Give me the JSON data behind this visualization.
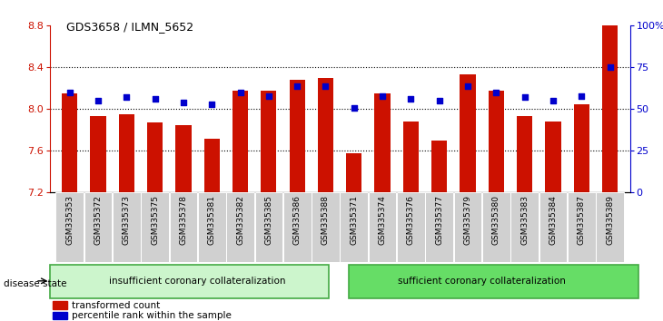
{
  "title": "GDS3658 / ILMN_5652",
  "samples": [
    "GSM335353",
    "GSM335372",
    "GSM335373",
    "GSM335375",
    "GSM335378",
    "GSM335381",
    "GSM335382",
    "GSM335385",
    "GSM335386",
    "GSM335388",
    "GSM335371",
    "GSM335374",
    "GSM335376",
    "GSM335377",
    "GSM335379",
    "GSM335380",
    "GSM335383",
    "GSM335384",
    "GSM335387",
    "GSM335389"
  ],
  "bar_values": [
    8.15,
    7.93,
    7.95,
    7.87,
    7.85,
    7.72,
    8.18,
    8.18,
    8.28,
    8.3,
    7.58,
    8.15,
    7.88,
    7.7,
    8.33,
    8.18,
    7.93,
    7.88,
    8.05,
    8.8
  ],
  "percentile_values": [
    60,
    55,
    57,
    56,
    54,
    53,
    60,
    58,
    64,
    64,
    51,
    58,
    56,
    55,
    64,
    60,
    57,
    55,
    58,
    75
  ],
  "group1_label": "insufficient coronary collateralization",
  "group2_label": "sufficient coronary collateralization",
  "group1_count": 10,
  "group2_count": 10,
  "group1_color": "#ccf5cc",
  "group2_color": "#66dd66",
  "bar_color": "#cc1100",
  "dot_color": "#0000cc",
  "ylim_left": [
    7.2,
    8.8
  ],
  "ylim_right": [
    0,
    100
  ],
  "yticks_left": [
    7.2,
    7.6,
    8.0,
    8.4,
    8.8
  ],
  "yticks_right": [
    0,
    25,
    50,
    75,
    100
  ],
  "ytick_labels_right": [
    "0",
    "25",
    "50",
    "75",
    "100%"
  ],
  "grid_values": [
    7.6,
    8.0,
    8.4
  ],
  "legend_bar_label": "transformed count",
  "legend_dot_label": "percentile rank within the sample",
  "disease_state_label": "disease state",
  "bar_width": 0.55,
  "background_color": "#ffffff",
  "tick_bg_color": "#d0d0d0"
}
